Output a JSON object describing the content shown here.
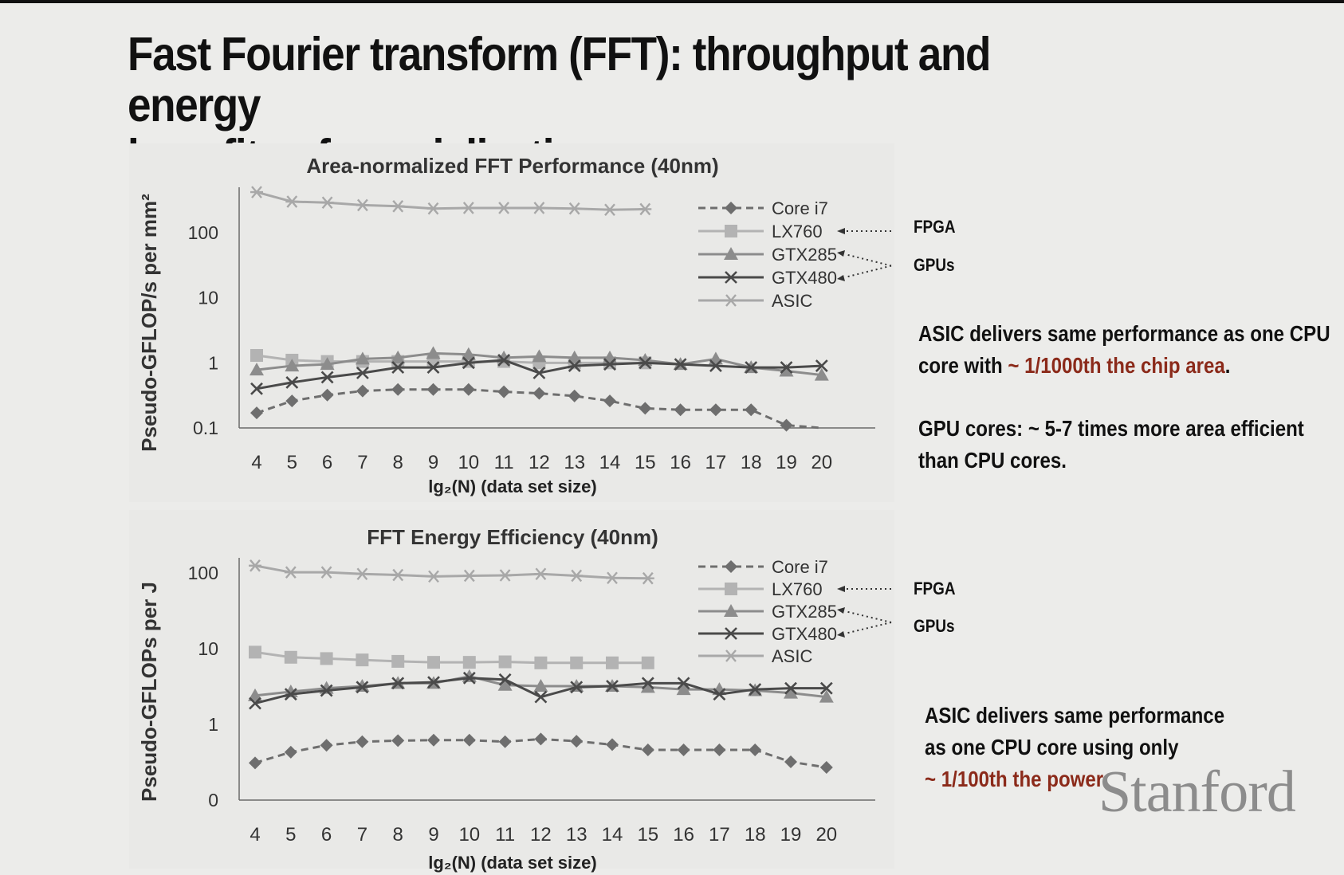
{
  "slide": {
    "title_line1": "Fast Fourier transform (FFT): throughput and energy",
    "title_line2": "benefits of specialization",
    "watermark": "Stanford"
  },
  "annotations": {
    "fpga_tag": "FPGA",
    "gpus_tag": "GPUs",
    "perf_text_line1": "ASIC delivers same performance as one CPU",
    "perf_text_line2_prefix": "core with ",
    "perf_text_line2_highlight": "~ 1/1000th the chip area",
    "perf_text_line2_suffix": ".",
    "gpu_text_line1": "GPU cores: ~ 5-7 times more area efficient",
    "gpu_text_line2": "than CPU cores.",
    "energy_text_line1": "ASIC delivers same performance",
    "energy_text_line2": "as one CPU core using only",
    "energy_text_line3_highlight": "~ 1/100th the power"
  },
  "chart_data": [
    {
      "type": "line",
      "title": "Area-normalized FFT Performance (40nm)",
      "xlabel": "lg₂(N) (data set size)",
      "ylabel": "Pseudo-GFLOP/s per mm²",
      "yscale": "log",
      "ylim": [
        0.1,
        500
      ],
      "yticks": [
        0.1,
        1,
        10,
        100
      ],
      "ytick_labels": [
        "0.1",
        "1",
        "10",
        "100"
      ],
      "x": [
        4,
        5,
        6,
        7,
        8,
        9,
        10,
        11,
        12,
        13,
        14,
        15,
        16,
        17,
        18,
        19,
        20
      ],
      "legend_position": "top-right",
      "grid": false,
      "series": [
        {
          "name": "Core i7",
          "marker": "diamond",
          "dash": true,
          "color": "#6e6e6e",
          "values": [
            0.17,
            0.26,
            0.32,
            0.37,
            0.39,
            0.39,
            0.39,
            0.36,
            0.34,
            0.31,
            0.26,
            0.2,
            0.19,
            0.19,
            0.19,
            0.11,
            0.09
          ]
        },
        {
          "name": "LX760",
          "marker": "square",
          "dash": false,
          "color": "#b3b3b3",
          "values": [
            1.3,
            1.1,
            1.05,
            1.05,
            1.05,
            1.05,
            1.05,
            1.05,
            1.0,
            1.0,
            1.0,
            1.0,
            null,
            null,
            null,
            null,
            null
          ]
        },
        {
          "name": "GTX285",
          "marker": "triangle",
          "dash": false,
          "color": "#8c8c8c",
          "values": [
            0.78,
            0.9,
            0.95,
            1.15,
            1.2,
            1.4,
            1.35,
            1.2,
            1.25,
            1.2,
            1.2,
            1.1,
            0.95,
            1.15,
            0.85,
            0.75,
            0.65
          ]
        },
        {
          "name": "GTX480",
          "marker": "x",
          "dash": false,
          "color": "#4a4a4a",
          "values": [
            0.4,
            0.5,
            0.6,
            0.7,
            0.85,
            0.85,
            1.0,
            1.1,
            0.7,
            0.9,
            0.95,
            1.0,
            0.95,
            0.9,
            0.85,
            0.85,
            0.9
          ]
        },
        {
          "name": "ASIC",
          "marker": "asterisk",
          "dash": false,
          "color": "#a8a8a8",
          "values": [
            420,
            300,
            290,
            265,
            255,
            235,
            240,
            240,
            240,
            235,
            225,
            230,
            null,
            null,
            null,
            null,
            null
          ]
        }
      ]
    },
    {
      "type": "line",
      "title": "FFT Energy Efficiency (40nm)",
      "xlabel": "lg₂(N) (data set size)",
      "ylabel": "Pseudo-GFLOPs per J",
      "yscale": "log",
      "ylim": [
        0.1,
        150
      ],
      "yticks": [
        0.1,
        1,
        10,
        100
      ],
      "ytick_labels": [
        "0",
        "1",
        "10",
        "100"
      ],
      "x": [
        4,
        5,
        6,
        7,
        8,
        9,
        10,
        11,
        12,
        13,
        14,
        15,
        16,
        17,
        18,
        19,
        20
      ],
      "legend_position": "top-right",
      "grid": false,
      "series": [
        {
          "name": "Core i7",
          "marker": "diamond",
          "dash": true,
          "color": "#6e6e6e",
          "values": [
            0.31,
            0.43,
            0.53,
            0.59,
            0.61,
            0.62,
            0.62,
            0.59,
            0.64,
            0.6,
            0.54,
            0.46,
            0.46,
            0.46,
            0.46,
            0.32,
            0.27
          ]
        },
        {
          "name": "LX760",
          "marker": "square",
          "dash": false,
          "color": "#b3b3b3",
          "values": [
            9.0,
            7.7,
            7.4,
            7.1,
            6.8,
            6.6,
            6.6,
            6.7,
            6.5,
            6.5,
            6.5,
            6.5,
            null,
            null,
            null,
            null,
            null
          ]
        },
        {
          "name": "GTX285",
          "marker": "triangle",
          "dash": false,
          "color": "#8c8c8c",
          "values": [
            2.4,
            2.7,
            3.0,
            3.2,
            3.5,
            3.5,
            4.3,
            3.3,
            3.2,
            3.2,
            3.2,
            3.1,
            2.9,
            2.9,
            2.8,
            2.6,
            2.3
          ]
        },
        {
          "name": "GTX480",
          "marker": "x",
          "dash": false,
          "color": "#4a4a4a",
          "values": [
            1.9,
            2.5,
            2.8,
            3.1,
            3.5,
            3.6,
            4.1,
            3.9,
            2.3,
            3.1,
            3.2,
            3.5,
            3.5,
            2.5,
            2.9,
            3.0,
            3.0
          ]
        },
        {
          "name": "ASIC",
          "marker": "asterisk",
          "dash": false,
          "color": "#a8a8a8",
          "values": [
            125,
            102,
            102,
            97,
            94,
            90,
            92,
            93,
            97,
            92,
            86,
            85,
            null,
            null,
            null,
            null,
            null
          ]
        }
      ]
    }
  ]
}
